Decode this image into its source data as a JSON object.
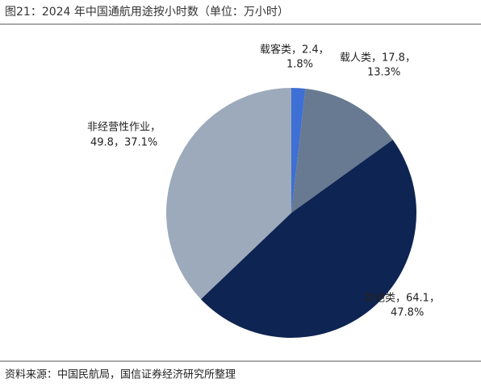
{
  "chart_data": {
    "type": "pie",
    "title": "图21：2024 年中国通航用途按小时数（单位：万小时）",
    "values": [
      2.4,
      17.8,
      64.1,
      49.8
    ],
    "value_labels": [
      [
        "载客类，2.4，",
        "1.8%"
      ],
      [
        "载人类，17.8，",
        "13.3%"
      ],
      [
        "其他类，64.1，",
        "47.8%"
      ],
      [
        "非经营性作业，",
        "49.8，37.1%"
      ]
    ],
    "colors": [
      "#3d6fd4",
      "#677a91",
      "#0e2452",
      "#9caabb"
    ],
    "source": "资料来源：中国民航局，国信证券经济研究所整理"
  }
}
